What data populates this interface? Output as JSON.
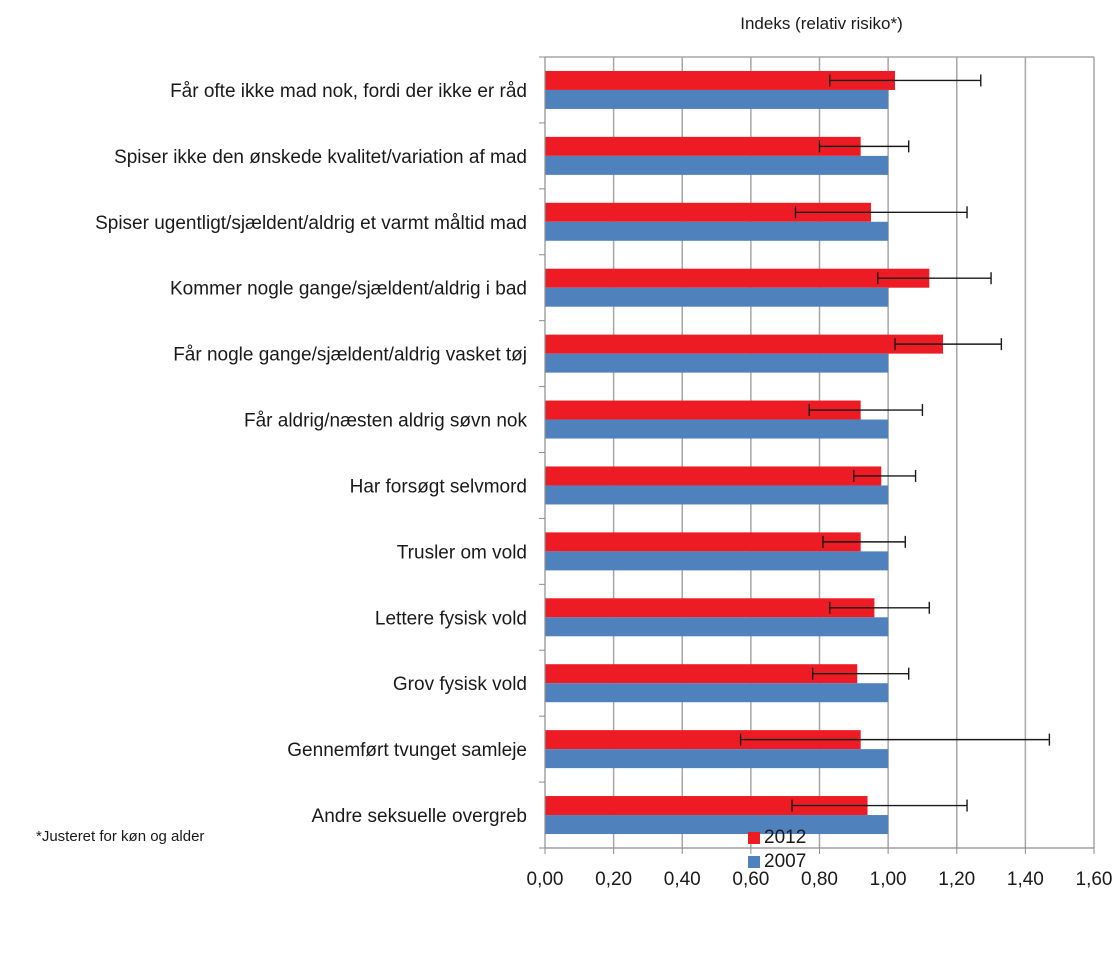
{
  "chart_data": {
    "type": "bar",
    "orientation": "horizontal",
    "title": "",
    "xlabel": "Indeks (relativ risiko*)",
    "ylabel": "",
    "xlim": [
      0,
      1.6
    ],
    "x_ticks": [
      "0,00",
      "0,20",
      "0,40",
      "0,60",
      "0,80",
      "1,00",
      "1,20",
      "1,40",
      "1,60"
    ],
    "grid": "vertical",
    "legend_position": "bottom-center",
    "categories": [
      "Får ofte ikke mad nok, fordi der ikke er råd",
      "Spiser ikke den ønskede kvalitet/variation af mad",
      "Spiser ugentligt/sjældent/aldrig et varmt måltid mad",
      "Kommer nogle gange/sjældent/aldrig i bad",
      "Får nogle gange/sjældent/aldrig vasket tøj",
      "Får aldrig/næsten aldrig søvn nok",
      "Har forsøgt selvmord",
      "Trusler om vold",
      "Lettere fysisk vold",
      "Grov fysisk vold",
      "Gennemført tvunget samleje",
      "Andre seksuelle overgreb"
    ],
    "series": [
      {
        "name": "2012",
        "color": "#ed1c24",
        "values": [
          1.02,
          0.92,
          0.95,
          1.12,
          1.16,
          0.92,
          0.98,
          0.92,
          0.96,
          0.91,
          0.92,
          0.94
        ],
        "error_low": [
          0.83,
          0.8,
          0.73,
          0.97,
          1.02,
          0.77,
          0.9,
          0.81,
          0.83,
          0.78,
          0.57,
          0.72
        ],
        "error_high": [
          1.27,
          1.06,
          1.23,
          1.3,
          1.33,
          1.1,
          1.08,
          1.05,
          1.12,
          1.06,
          1.47,
          1.23
        ]
      },
      {
        "name": "2007",
        "color": "#4f81bd",
        "values": [
          1.0,
          1.0,
          1.0,
          1.0,
          1.0,
          1.0,
          1.0,
          1.0,
          1.0,
          1.0,
          1.0,
          1.0
        ]
      }
    ],
    "footnote": "*Justeret for køn og alder"
  }
}
